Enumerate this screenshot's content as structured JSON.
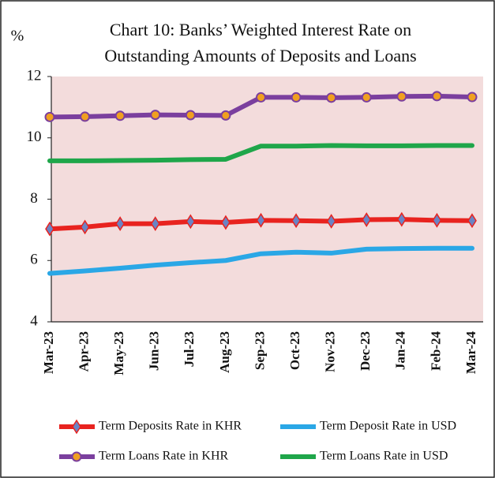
{
  "chart_data": {
    "type": "line",
    "title": "Chart 10: Banks’ Weighted Interest Rate on Outstanding Amounts of Deposits and Loans",
    "title_lines": [
      "Chart 10: Banks’ Weighted Interest Rate on",
      "Outstanding Amounts of Deposits and Loans"
    ],
    "y_label": "%",
    "categories": [
      "Mar-23",
      "Apr-23",
      "May-23",
      "Jun-23",
      "Jul-23",
      "Aug-23",
      "Sep-23",
      "Oct-23",
      "Nov-23",
      "Dec-23",
      "Jan-24",
      "Feb-24",
      "Mar-24"
    ],
    "ylim": [
      4,
      12
    ],
    "yticks": [
      4,
      6,
      8,
      10,
      12
    ],
    "series": [
      {
        "name": "Term Deposits Rate in KHR",
        "color": "#e8231f",
        "marker": "diamond",
        "marker_color": "#6b84c4",
        "values": [
          7.03,
          7.09,
          7.2,
          7.2,
          7.27,
          7.24,
          7.31,
          7.3,
          7.28,
          7.33,
          7.34,
          7.31,
          7.3
        ]
      },
      {
        "name": "Term Deposit Rate in USD",
        "color": "#2aa7e6",
        "values": [
          5.58,
          5.66,
          5.75,
          5.85,
          5.93,
          6.0,
          6.22,
          6.27,
          6.24,
          6.37,
          6.39,
          6.4,
          6.4
        ]
      },
      {
        "name": "Term Loans Rate in KHR",
        "color": "#7b3f9e",
        "marker": "circle",
        "marker_color": "#f0a020",
        "values": [
          10.68,
          10.69,
          10.72,
          10.75,
          10.74,
          10.73,
          11.32,
          11.32,
          11.31,
          11.32,
          11.35,
          11.36,
          11.33
        ]
      },
      {
        "name": "Term Loans Rate in USD",
        "color": "#1fa64a",
        "values": [
          9.25,
          9.25,
          9.26,
          9.27,
          9.29,
          9.3,
          9.73,
          9.73,
          9.75,
          9.74,
          9.74,
          9.75,
          9.75
        ]
      }
    ]
  }
}
